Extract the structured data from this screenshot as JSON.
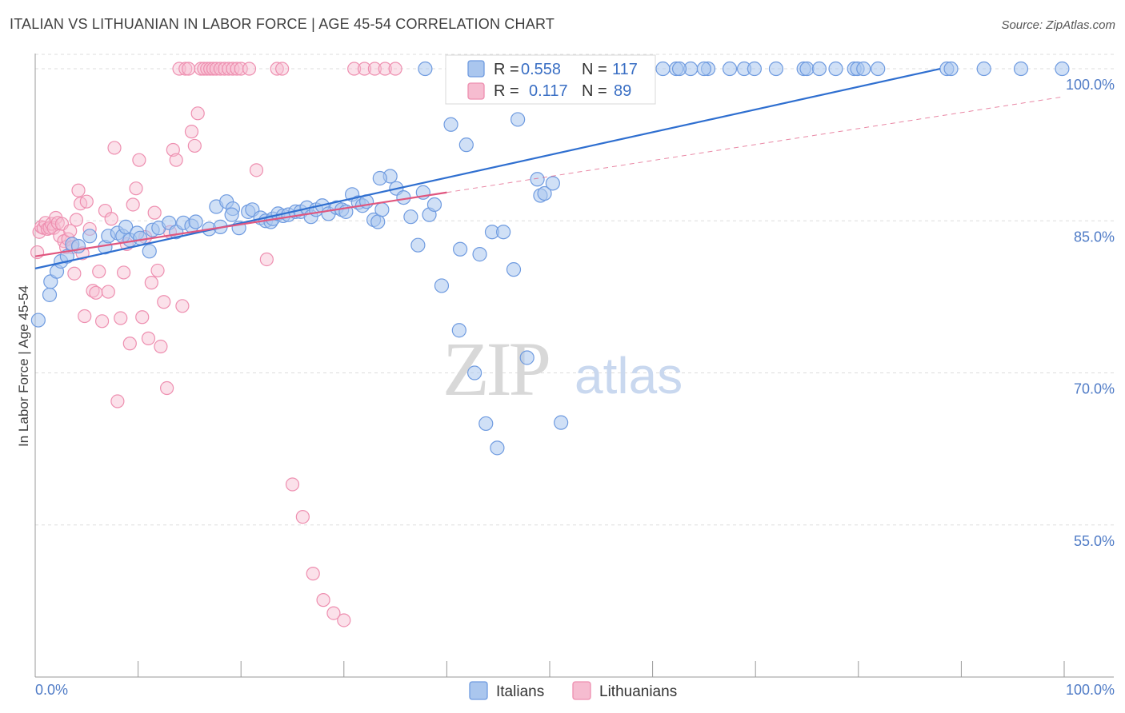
{
  "title": "ITALIAN VS LITHUANIAN IN LABOR FORCE | AGE 45-54 CORRELATION CHART",
  "source": "Source: ZipAtlas.com",
  "watermark": {
    "zip": "ZIP",
    "atlas": "atlas"
  },
  "colors": {
    "italians_fill": "#aac6ee",
    "italians_stroke": "#6f9be0",
    "italians_line": "#2f6fd0",
    "lithuanians_fill": "#f6bcd0",
    "lithuanians_stroke": "#ee8fb0",
    "lithuanians_line": "#e0567f",
    "grid": "#dddddd",
    "tick_label": "#4f7bc6"
  },
  "legend_box": {
    "rows": [
      {
        "r_label": "R = ",
        "r_value": "0.558",
        "n_label": "N = ",
        "n_value": "117"
      },
      {
        "r_label": "R = ",
        "r_value": "0.117",
        "n_label": "N = ",
        "n_value": "89"
      }
    ]
  },
  "bottom_legend": [
    "Italians",
    "Lithuanians"
  ],
  "chart_data": {
    "type": "scatter",
    "title": "ITALIAN VS LITHUANIAN IN LABOR FORCE | AGE 45-54 CORRELATION CHART",
    "xlabel": "",
    "ylabel": "In Labor Force | Age 45-54",
    "xlim": [
      0,
      100
    ],
    "ylim": [
      40,
      101.5
    ],
    "x_tick_labels": [
      "0.0%",
      "100.0%"
    ],
    "y_ticks": [
      55,
      70,
      85,
      100
    ],
    "y_tick_labels": [
      "55.0%",
      "70.0%",
      "85.0%",
      "100.0%"
    ],
    "grid": true,
    "legend_position": "top-center",
    "series": [
      {
        "name": "Italians",
        "r": 0.558,
        "n": 117,
        "trend": {
          "x": [
            0,
            100
          ],
          "y": [
            80.3,
            102.7
          ]
        },
        "x": [
          0.3,
          1.4,
          1.5,
          2.1,
          2.5,
          3.1,
          3.6,
          4.2,
          5.3,
          6.8,
          7.1,
          8.0,
          8.5,
          8.8,
          9.2,
          9.9,
          10.2,
          11.1,
          11.4,
          12.0,
          13.0,
          13.7,
          14.4,
          15.2,
          15.6,
          16.9,
          17.6,
          18.0,
          18.6,
          19.2,
          19.8,
          20.7,
          21.1,
          21.9,
          22.4,
          22.9,
          23.1,
          23.6,
          24.1,
          24.6,
          25.3,
          25.8,
          26.4,
          26.8,
          27.3,
          27.9,
          28.5,
          29.3,
          29.8,
          30.2,
          30.8,
          31.4,
          31.8,
          32.2,
          32.9,
          33.3,
          33.7,
          34.5,
          35.1,
          35.8,
          36.5,
          37.2,
          37.7,
          38.3,
          38.8,
          39.5,
          40.4,
          41.2,
          41.9,
          42.7,
          43.2,
          44.4,
          44.9,
          45.5,
          46.9,
          47.8,
          49.1,
          49.5,
          50.3,
          51.1,
          52.9,
          54.1,
          55.3,
          56.6,
          58.2,
          61.0,
          62.3,
          63.7,
          65.4,
          67.5,
          68.9,
          69.9,
          72.0,
          74.7,
          75.0,
          76.2,
          77.8,
          79.6,
          79.9,
          80.5,
          81.9,
          88.6,
          89.0,
          92.2,
          95.8,
          99.8,
          19.1,
          33.5,
          41.3,
          57.1,
          65.0,
          62.6,
          43.8,
          46.1,
          37.9,
          48.8,
          46.5
        ],
        "y": [
          75.2,
          77.7,
          79.0,
          80.0,
          81.0,
          81.5,
          82.7,
          82.5,
          83.5,
          82.4,
          83.5,
          83.8,
          83.5,
          84.4,
          83.1,
          83.8,
          83.3,
          82.0,
          84.1,
          84.3,
          84.8,
          83.9,
          84.8,
          84.5,
          84.9,
          84.2,
          86.4,
          84.4,
          86.9,
          86.2,
          84.3,
          85.9,
          86.1,
          85.3,
          85.0,
          84.9,
          85.2,
          85.7,
          85.5,
          85.6,
          85.9,
          85.9,
          86.3,
          85.4,
          86.1,
          86.5,
          85.7,
          86.3,
          86.1,
          85.9,
          87.6,
          86.8,
          86.5,
          86.9,
          85.1,
          84.9,
          86.1,
          89.4,
          88.2,
          87.3,
          85.4,
          82.6,
          87.8,
          85.6,
          86.6,
          78.6,
          94.5,
          74.2,
          92.5,
          70.0,
          81.7,
          83.9,
          62.6,
          83.9,
          95.0,
          71.5,
          87.5,
          87.7,
          88.7,
          65.1,
          100.0,
          100.0,
          100.0,
          100.0,
          100.0,
          100.0,
          100.0,
          100.0,
          100.0,
          100.0,
          100.0,
          100.0,
          100.0,
          100.0,
          100.0,
          100.0,
          100.0,
          100.0,
          100.0,
          100.0,
          100.0,
          100.0,
          100.0,
          100.0,
          100.0,
          100.0,
          85.6,
          89.2,
          82.2,
          100.0,
          100.0,
          100.0,
          65.0,
          100.0,
          100.0,
          89.1,
          80.2
        ]
      },
      {
        "name": "Lithuanians",
        "r": 0.117,
        "n": 89,
        "trend": {
          "x": [
            0,
            40
          ],
          "y": [
            81.5,
            87.8
          ]
        },
        "x": [
          0.2,
          0.4,
          0.6,
          0.8,
          1.0,
          1.2,
          1.4,
          1.6,
          1.8,
          2.0,
          2.2,
          2.4,
          2.6,
          2.8,
          3.0,
          3.2,
          3.4,
          3.6,
          3.8,
          4.0,
          4.2,
          4.4,
          4.6,
          4.8,
          5.0,
          5.3,
          5.6,
          5.9,
          6.2,
          6.5,
          6.8,
          7.1,
          7.4,
          7.7,
          8.0,
          8.3,
          8.6,
          8.9,
          9.2,
          9.5,
          9.8,
          10.1,
          10.4,
          10.7,
          11.0,
          11.3,
          11.6,
          11.9,
          12.2,
          12.5,
          12.8,
          13.1,
          13.4,
          13.7,
          14.0,
          14.3,
          14.6,
          14.9,
          15.2,
          15.5,
          15.8,
          16.1,
          16.4,
          16.7,
          17.0,
          17.3,
          17.6,
          18.0,
          18.4,
          18.8,
          19.2,
          19.6,
          20.0,
          20.8,
          21.5,
          22.5,
          23.5,
          24.0,
          25.0,
          26.0,
          27.0,
          28.0,
          29.0,
          30.0,
          31.0,
          32.0,
          33.0,
          34.0,
          35.0
        ],
        "y": [
          81.9,
          83.9,
          84.4,
          84.3,
          84.8,
          84.2,
          84.3,
          84.7,
          84.3,
          85.3,
          84.8,
          83.5,
          84.7,
          83.0,
          82.4,
          83.2,
          84.0,
          82.4,
          79.8,
          85.1,
          88.0,
          86.7,
          81.8,
          75.6,
          86.9,
          84.2,
          78.1,
          77.9,
          80.0,
          75.1,
          86.0,
          78.0,
          85.2,
          92.2,
          67.2,
          75.4,
          79.9,
          82.7,
          72.9,
          86.6,
          88.2,
          91.0,
          75.5,
          83.4,
          73.4,
          78.9,
          85.8,
          80.1,
          72.6,
          77.0,
          68.5,
          83.9,
          92.0,
          91.0,
          100.0,
          76.6,
          100.0,
          100.0,
          93.8,
          92.4,
          95.6,
          100.0,
          100.0,
          100.0,
          100.0,
          100.0,
          100.0,
          100.0,
          100.0,
          100.0,
          100.0,
          100.0,
          100.0,
          100.0,
          90.0,
          81.2,
          100.0,
          100.0,
          59.0,
          55.8,
          50.2,
          47.6,
          46.3,
          45.6,
          100.0,
          100.0,
          100.0,
          100.0,
          100.0
        ]
      }
    ]
  }
}
